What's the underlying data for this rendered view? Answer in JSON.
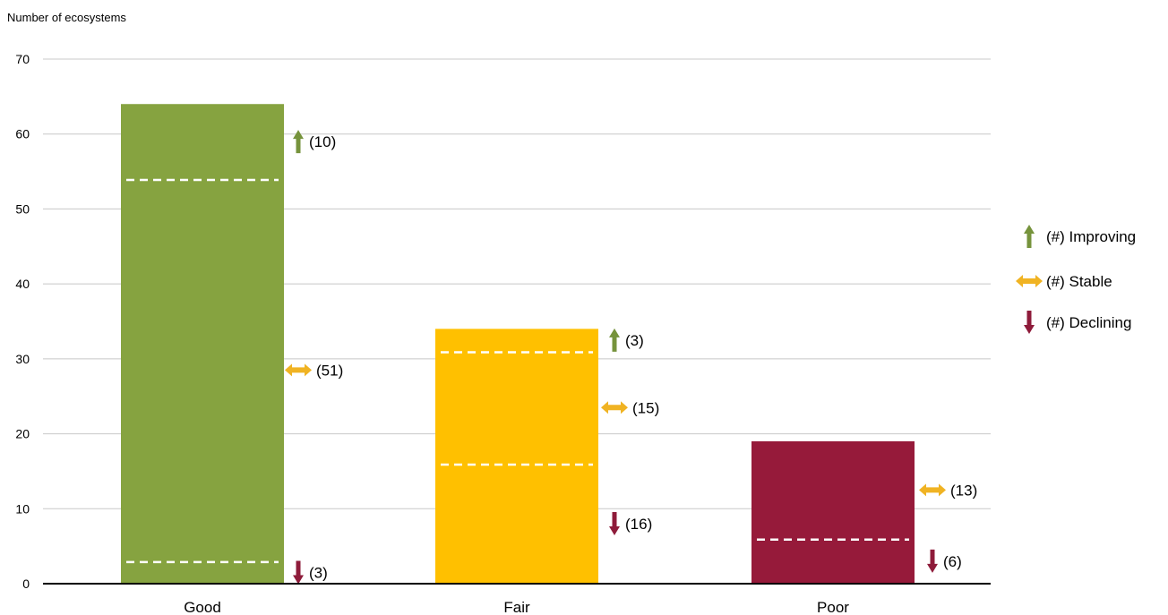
{
  "chart_data": {
    "type": "bar",
    "ylabel": "Number of ecosystems",
    "ylim": [
      0,
      70
    ],
    "yticks": [
      0,
      10,
      20,
      30,
      40,
      50,
      60,
      70
    ],
    "grid": true,
    "legend_position": "right",
    "categories": [
      "Good",
      "Fair",
      "Poor"
    ],
    "values": [
      64,
      34,
      19
    ],
    "bar_colors": [
      "#86a340",
      "#ffc000",
      "#961a3a"
    ],
    "trend_colors": {
      "improving": "#76933c",
      "stable": "#f0b323",
      "declining": "#8e1b3a"
    },
    "breakdown": [
      {
        "category": "Good",
        "improving": 10,
        "stable": 51,
        "declining": 3
      },
      {
        "category": "Fair",
        "improving": 3,
        "stable": 15,
        "declining": 16
      },
      {
        "category": "Poor",
        "improving": 0,
        "stable": 13,
        "declining": 6
      }
    ],
    "annotations": [
      {
        "category": "Good",
        "trend": "improving",
        "label": "(10)"
      },
      {
        "category": "Good",
        "trend": "stable",
        "label": "(51)"
      },
      {
        "category": "Good",
        "trend": "declining",
        "label": "(3)"
      },
      {
        "category": "Fair",
        "trend": "improving",
        "label": "(3)"
      },
      {
        "category": "Fair",
        "trend": "stable",
        "label": "(15)"
      },
      {
        "category": "Fair",
        "trend": "declining",
        "label": "(16)"
      },
      {
        "category": "Poor",
        "trend": "stable",
        "label": "(13)"
      },
      {
        "category": "Poor",
        "trend": "declining",
        "label": "(6)"
      }
    ],
    "legend": [
      {
        "trend": "improving",
        "label": "(#) Improving"
      },
      {
        "trend": "stable",
        "label": "(#) Stable"
      },
      {
        "trend": "declining",
        "label": "(#) Declining"
      }
    ]
  }
}
